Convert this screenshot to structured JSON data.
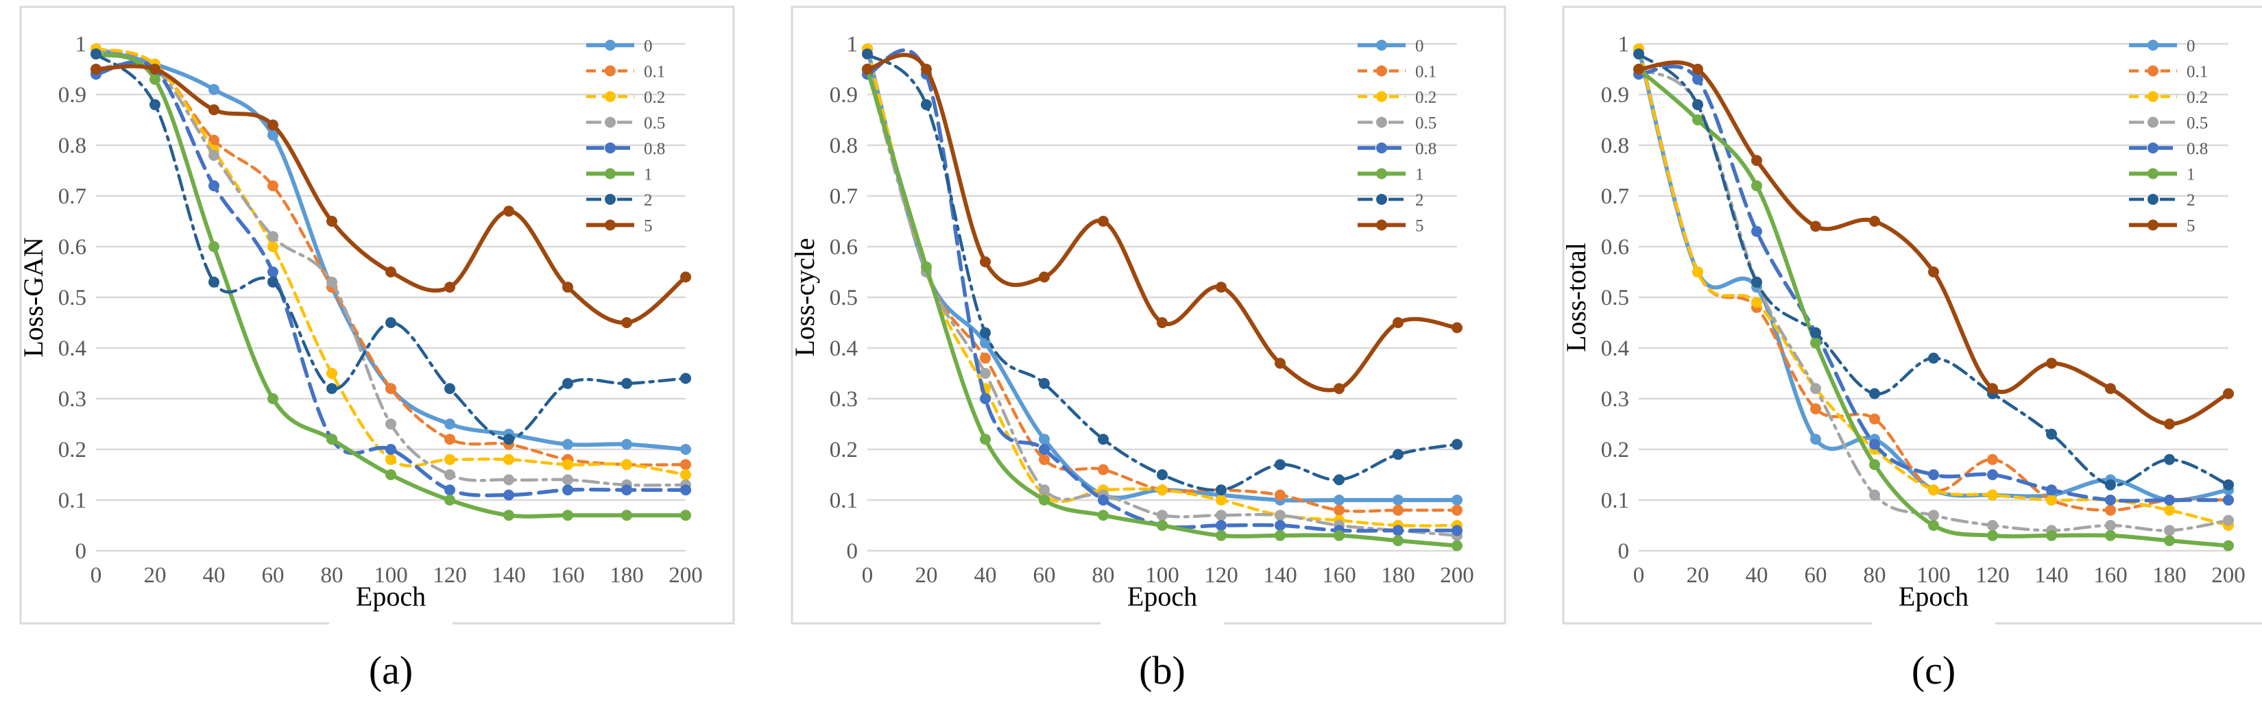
{
  "chart_data": [
    {
      "type": "line",
      "caption": "(a)",
      "xlabel": "Epoch",
      "ylabel": "Loss-GAN",
      "x": [
        0,
        20,
        40,
        60,
        80,
        100,
        120,
        140,
        160,
        180,
        200
      ],
      "xlim": [
        0,
        200
      ],
      "ylim": [
        0,
        1
      ],
      "y_ticks": [
        "0",
        "0.1",
        "0.2",
        "0.3",
        "0.4",
        "0.5",
        "0.6",
        "0.7",
        "0.8",
        "0.9",
        "1"
      ],
      "grid": true,
      "legend_position": "top-right",
      "series": [
        {
          "name": "0",
          "color": "#5b9bd5",
          "dash": "solid",
          "values": [
            0.99,
            0.96,
            0.91,
            0.82,
            0.52,
            0.32,
            0.25,
            0.23,
            0.21,
            0.21,
            0.2
          ]
        },
        {
          "name": "0.1",
          "color": "#ed7d31",
          "dash": "dash",
          "values": [
            0.99,
            0.96,
            0.81,
            0.72,
            0.52,
            0.32,
            0.22,
            0.21,
            0.18,
            0.17,
            0.17
          ]
        },
        {
          "name": "0.2",
          "color": "#ffc000",
          "dash": "dash",
          "values": [
            0.99,
            0.96,
            0.79,
            0.6,
            0.35,
            0.18,
            0.18,
            0.18,
            0.17,
            0.17,
            0.15
          ]
        },
        {
          "name": "0.5",
          "color": "#a5a5a5",
          "dash": "dashdot",
          "values": [
            0.95,
            0.95,
            0.78,
            0.62,
            0.53,
            0.25,
            0.15,
            0.14,
            0.14,
            0.13,
            0.13
          ]
        },
        {
          "name": "0.8",
          "color": "#4472c4",
          "dash": "longdash",
          "values": [
            0.94,
            0.95,
            0.72,
            0.55,
            0.22,
            0.2,
            0.12,
            0.11,
            0.12,
            0.12,
            0.12
          ]
        },
        {
          "name": "1",
          "color": "#70ad47",
          "dash": "solid",
          "values": [
            0.98,
            0.93,
            0.6,
            0.3,
            0.22,
            0.15,
            0.1,
            0.07,
            0.07,
            0.07,
            0.07
          ]
        },
        {
          "name": "2",
          "color": "#255e91",
          "dash": "dashdot",
          "values": [
            0.98,
            0.88,
            0.53,
            0.53,
            0.32,
            0.45,
            0.32,
            0.22,
            0.33,
            0.33,
            0.34
          ]
        },
        {
          "name": "5",
          "color": "#9e480e",
          "dash": "solid",
          "values": [
            0.95,
            0.95,
            0.87,
            0.84,
            0.65,
            0.55,
            0.52,
            0.67,
            0.52,
            0.45,
            0.54
          ]
        }
      ]
    },
    {
      "type": "line",
      "caption": "(b)",
      "xlabel": "Epoch",
      "ylabel": "Loss-cycle",
      "x": [
        0,
        20,
        40,
        60,
        80,
        100,
        120,
        140,
        160,
        180,
        200
      ],
      "xlim": [
        0,
        200
      ],
      "ylim": [
        0,
        1
      ],
      "y_ticks": [
        "0",
        "0.1",
        "0.2",
        "0.3",
        "0.4",
        "0.5",
        "0.6",
        "0.7",
        "0.8",
        "0.9",
        "1"
      ],
      "grid": true,
      "legend_position": "top-right",
      "series": [
        {
          "name": "0",
          "color": "#5b9bd5",
          "dash": "solid",
          "values": [
            0.99,
            0.55,
            0.41,
            0.22,
            0.11,
            0.12,
            0.11,
            0.1,
            0.1,
            0.1,
            0.1
          ]
        },
        {
          "name": "0.1",
          "color": "#ed7d31",
          "dash": "dash",
          "values": [
            0.99,
            0.55,
            0.38,
            0.18,
            0.16,
            0.12,
            0.12,
            0.11,
            0.08,
            0.08,
            0.08
          ]
        },
        {
          "name": "0.2",
          "color": "#ffc000",
          "dash": "dash",
          "values": [
            0.99,
            0.55,
            0.32,
            0.11,
            0.12,
            0.12,
            0.1,
            0.07,
            0.06,
            0.05,
            0.05
          ]
        },
        {
          "name": "0.5",
          "color": "#a5a5a5",
          "dash": "dashdot",
          "values": [
            0.95,
            0.55,
            0.35,
            0.12,
            0.11,
            0.07,
            0.07,
            0.07,
            0.05,
            0.04,
            0.03
          ]
        },
        {
          "name": "0.8",
          "color": "#4472c4",
          "dash": "longdash",
          "values": [
            0.94,
            0.94,
            0.3,
            0.2,
            0.1,
            0.05,
            0.05,
            0.05,
            0.04,
            0.04,
            0.04
          ]
        },
        {
          "name": "1",
          "color": "#70ad47",
          "dash": "solid",
          "values": [
            0.95,
            0.56,
            0.22,
            0.1,
            0.07,
            0.05,
            0.03,
            0.03,
            0.03,
            0.02,
            0.01
          ]
        },
        {
          "name": "2",
          "color": "#255e91",
          "dash": "dashdot",
          "values": [
            0.98,
            0.88,
            0.43,
            0.33,
            0.22,
            0.15,
            0.12,
            0.17,
            0.14,
            0.19,
            0.21
          ]
        },
        {
          "name": "5",
          "color": "#9e480e",
          "dash": "solid",
          "values": [
            0.95,
            0.95,
            0.57,
            0.54,
            0.65,
            0.45,
            0.52,
            0.37,
            0.32,
            0.45,
            0.44
          ]
        }
      ]
    },
    {
      "type": "line",
      "caption": "(c)",
      "xlabel": "Epoch",
      "ylabel": "Loss-total",
      "x": [
        0,
        20,
        40,
        60,
        80,
        100,
        120,
        140,
        160,
        180,
        200
      ],
      "xlim": [
        0,
        200
      ],
      "ylim": [
        0,
        1
      ],
      "y_ticks": [
        "0",
        "0.1",
        "0.2",
        "0.3",
        "0.4",
        "0.5",
        "0.6",
        "0.7",
        "0.8",
        "0.9",
        "1"
      ],
      "grid": true,
      "legend_position": "top-right",
      "series": [
        {
          "name": "0",
          "color": "#5b9bd5",
          "dash": "solid",
          "values": [
            0.99,
            0.55,
            0.52,
            0.22,
            0.22,
            0.12,
            0.11,
            0.11,
            0.14,
            0.1,
            0.12
          ]
        },
        {
          "name": "0.1",
          "color": "#ed7d31",
          "dash": "dash",
          "values": [
            0.99,
            0.55,
            0.48,
            0.28,
            0.26,
            0.12,
            0.18,
            0.1,
            0.08,
            0.1,
            0.1
          ]
        },
        {
          "name": "0.2",
          "color": "#ffc000",
          "dash": "dash",
          "values": [
            0.99,
            0.55,
            0.49,
            0.32,
            0.2,
            0.12,
            0.11,
            0.1,
            0.1,
            0.08,
            0.05
          ]
        },
        {
          "name": "0.5",
          "color": "#a5a5a5",
          "dash": "dashdot",
          "values": [
            0.95,
            0.88,
            0.53,
            0.32,
            0.11,
            0.07,
            0.05,
            0.04,
            0.05,
            0.04,
            0.06
          ]
        },
        {
          "name": "0.8",
          "color": "#4472c4",
          "dash": "longdash",
          "values": [
            0.94,
            0.93,
            0.63,
            0.43,
            0.21,
            0.15,
            0.15,
            0.12,
            0.1,
            0.1,
            0.1
          ]
        },
        {
          "name": "1",
          "color": "#70ad47",
          "dash": "solid",
          "values": [
            0.95,
            0.85,
            0.72,
            0.41,
            0.17,
            0.05,
            0.03,
            0.03,
            0.03,
            0.02,
            0.01
          ]
        },
        {
          "name": "2",
          "color": "#255e91",
          "dash": "dashdot",
          "values": [
            0.98,
            0.88,
            0.53,
            0.43,
            0.31,
            0.38,
            0.31,
            0.23,
            0.13,
            0.18,
            0.13
          ]
        },
        {
          "name": "5",
          "color": "#9e480e",
          "dash": "solid",
          "values": [
            0.95,
            0.95,
            0.77,
            0.64,
            0.65,
            0.55,
            0.32,
            0.37,
            0.32,
            0.25,
            0.31
          ]
        }
      ]
    }
  ]
}
